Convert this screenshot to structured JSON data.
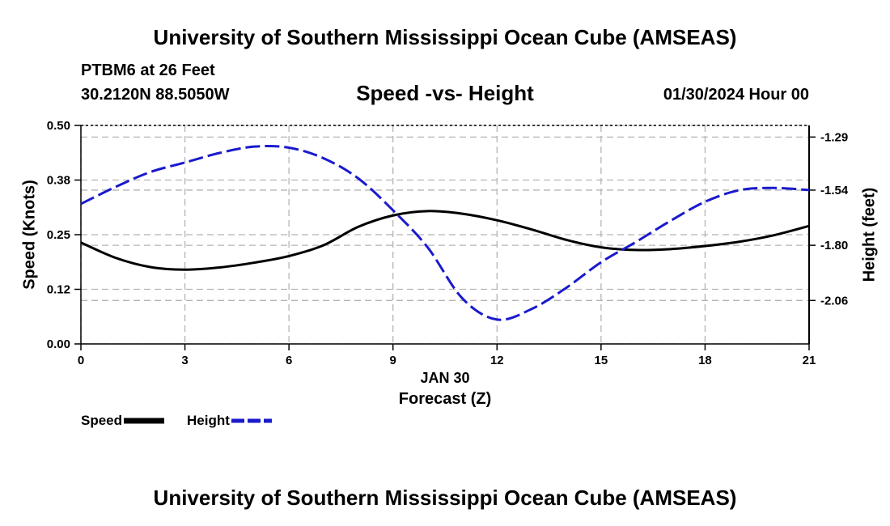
{
  "header": {
    "title": "University of Southern Mississippi Ocean Cube (AMSEAS)",
    "station": "PTBM6 at 26 Feet",
    "coords": "30.2120N  88.5050W",
    "subtitle": "Speed -vs- Height",
    "datetime": "01/30/2024 Hour 00"
  },
  "footer": {
    "title": "University of Southern Mississippi Ocean Cube (AMSEAS)"
  },
  "legend": {
    "speed_label": "Speed",
    "height_label": "Height"
  },
  "chart_data": {
    "type": "line",
    "title": "Speed -vs- Height",
    "xlabel": "Forecast (Z)",
    "date_label": "JAN 30",
    "ylabel": "Speed (Knots)",
    "y2label": "Height (feet)",
    "x_ticks": [
      0,
      3,
      6,
      9,
      12,
      15,
      18,
      21
    ],
    "xlim": [
      0,
      21
    ],
    "ylim": [
      0.0,
      0.5
    ],
    "y_ticks": [
      "0.00",
      "0.12",
      "0.25",
      "0.38",
      "0.50"
    ],
    "y_tick_values": [
      0.0,
      0.125,
      0.25,
      0.375,
      0.5
    ],
    "y2lim": [
      -2.2647,
      -1.2353
    ],
    "y2_ticks": [
      "-2.06",
      "-1.80",
      "-1.54",
      "-1.29"
    ],
    "y2_tick_values": [
      -2.06,
      -1.8,
      -1.54,
      -1.29
    ],
    "colors": {
      "speed": "#000000",
      "height": "#1a1acd",
      "grid": "#b4b4b4"
    },
    "series": [
      {
        "name": "Speed",
        "axis": "left",
        "x": [
          0,
          1,
          2,
          3,
          4,
          5,
          6,
          7,
          8,
          9,
          10,
          11,
          12,
          13,
          14,
          15,
          16,
          17,
          18,
          19,
          20,
          21
        ],
        "values": [
          0.232,
          0.197,
          0.176,
          0.17,
          0.175,
          0.186,
          0.201,
          0.226,
          0.268,
          0.294,
          0.304,
          0.298,
          0.283,
          0.262,
          0.238,
          0.221,
          0.215,
          0.217,
          0.224,
          0.234,
          0.249,
          0.27
        ]
      },
      {
        "name": "Height",
        "axis": "right",
        "x": [
          0,
          1,
          2,
          3,
          4,
          5,
          6,
          7,
          8,
          9,
          10,
          11,
          12,
          13,
          14,
          15,
          16,
          17,
          18,
          19,
          20,
          21
        ],
        "values": [
          -1.605,
          -1.525,
          -1.455,
          -1.41,
          -1.365,
          -1.335,
          -1.34,
          -1.39,
          -1.485,
          -1.635,
          -1.81,
          -2.05,
          -2.15,
          -2.1,
          -2.0,
          -1.88,
          -1.785,
          -1.685,
          -1.595,
          -1.54,
          -1.53,
          -1.54
        ]
      }
    ]
  }
}
